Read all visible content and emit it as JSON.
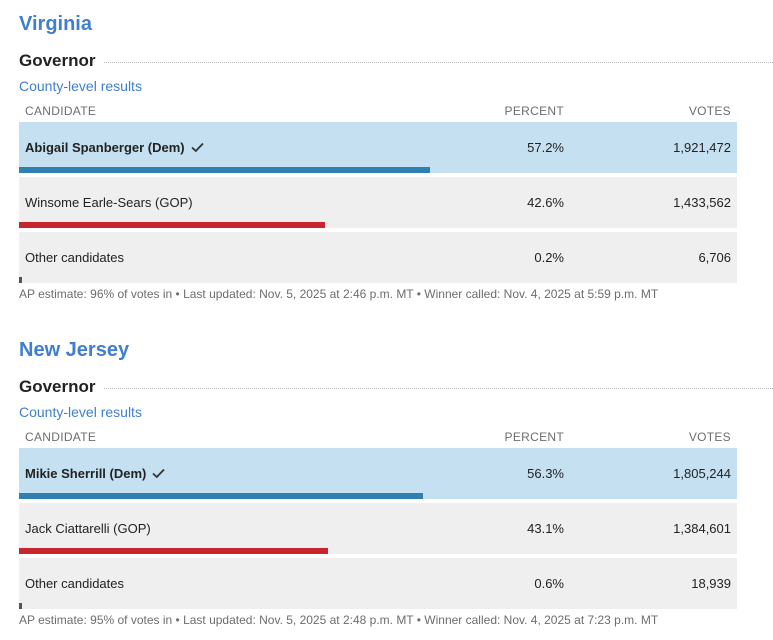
{
  "colors": {
    "accent": "#3f7fce",
    "winner_bg": "#c5e1f1",
    "row_bg": "#efefef",
    "dem": "#2f7fb0",
    "gop": "#c8262e",
    "other": "#555555"
  },
  "races": [
    {
      "state": "Virginia",
      "office": "Governor",
      "county_link": "County-level results",
      "headers": {
        "candidate": "CANDIDATE",
        "percent": "PERCENT",
        "votes": "VOTES"
      },
      "candidates": [
        {
          "name": "Abigail Spanberger (Dem)",
          "percent": "57.2%",
          "votes": "1,921,472",
          "winner": true,
          "party": "dem",
          "share": 57.2
        },
        {
          "name": "Winsome Earle-Sears (GOP)",
          "percent": "42.6%",
          "votes": "1,433,562",
          "winner": false,
          "party": "gop",
          "share": 42.6
        },
        {
          "name": "Other candidates",
          "percent": "0.2%",
          "votes": "6,706",
          "winner": false,
          "party": "oth",
          "share": 0.2
        }
      ],
      "footnote": "AP estimate: 96% of votes in • Last updated: Nov. 5, 2025 at 2:46 p.m. MT • Winner called: Nov. 4, 2025 at 5:59 p.m. MT"
    },
    {
      "state": "New Jersey",
      "office": "Governor",
      "county_link": "County-level results",
      "headers": {
        "candidate": "CANDIDATE",
        "percent": "PERCENT",
        "votes": "VOTES"
      },
      "candidates": [
        {
          "name": "Mikie Sherrill (Dem)",
          "percent": "56.3%",
          "votes": "1,805,244",
          "winner": true,
          "party": "dem",
          "share": 56.3
        },
        {
          "name": "Jack Ciattarelli (GOP)",
          "percent": "43.1%",
          "votes": "1,384,601",
          "winner": false,
          "party": "gop",
          "share": 43.1
        },
        {
          "name": "Other candidates",
          "percent": "0.6%",
          "votes": "18,939",
          "winner": false,
          "party": "oth",
          "share": 0.6
        }
      ],
      "footnote": "AP estimate: 95% of votes in • Last updated: Nov. 5, 2025 at 2:48 p.m. MT • Winner called: Nov. 4, 2025 at 7:23 p.m. MT"
    }
  ]
}
